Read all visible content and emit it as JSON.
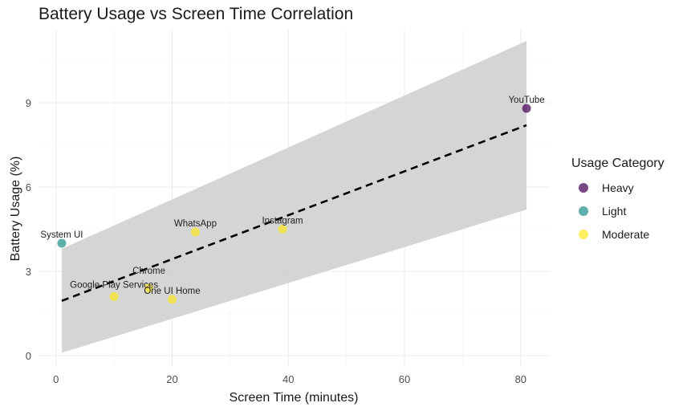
{
  "chart_data": {
    "type": "scatter",
    "title": "Battery Usage vs Screen Time Correlation",
    "xlabel": "Screen Time (minutes)",
    "ylabel": "Battery Usage (%)",
    "xlim": [
      -3,
      85
    ],
    "ylim": [
      -0.4,
      11.6
    ],
    "x_ticks": [
      0,
      20,
      40,
      60,
      80
    ],
    "y_ticks": [
      0,
      3,
      6,
      9
    ],
    "grid": true,
    "legend": {
      "title": "Usage Category",
      "placement": "right",
      "entries": [
        {
          "name": "Heavy",
          "color": "#440154"
        },
        {
          "name": "Light",
          "color": "#21908C"
        },
        {
          "name": "Moderate",
          "color": "#FDE725"
        }
      ]
    },
    "points": [
      {
        "label": "YouTube",
        "x": 81,
        "y": 8.8,
        "category": "Heavy"
      },
      {
        "label": "System UI",
        "x": 1,
        "y": 4.0,
        "category": "Light"
      },
      {
        "label": "WhatsApp",
        "x": 24,
        "y": 4.4,
        "category": "Moderate"
      },
      {
        "label": "Instagram",
        "x": 39,
        "y": 4.5,
        "category": "Moderate"
      },
      {
        "label": "Google Play Services",
        "x": 10,
        "y": 2.1,
        "category": "Moderate"
      },
      {
        "label": "Chrome",
        "x": 16,
        "y": 2.4,
        "category": "Moderate"
      },
      {
        "label": "One UI Home",
        "x": 20,
        "y": 2.0,
        "category": "Moderate"
      }
    ],
    "trend_line": {
      "style": "dashed",
      "color": "#000000",
      "x": [
        1,
        81
      ],
      "y": [
        1.95,
        8.2
      ]
    },
    "confidence_band": {
      "color": "#d3d3d3",
      "x": [
        1,
        81
      ],
      "lower": [
        0.1,
        5.2
      ],
      "upper": [
        3.8,
        11.2
      ]
    }
  }
}
